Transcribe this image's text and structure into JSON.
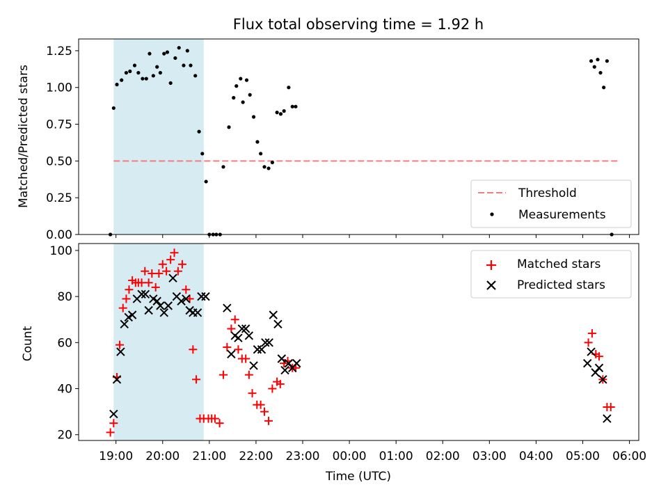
{
  "chart_data": [
    {
      "type": "scatter",
      "title": "Flux total observing time = 1.92 h",
      "xlabel": "",
      "ylabel": "Matched/Predicted stars",
      "ylim": [
        0,
        1.33
      ],
      "xlim": [
        18.2,
        30.2
      ],
      "yticks": [
        0,
        0.25,
        0.5,
        0.75,
        1.0,
        1.25
      ],
      "yticklabels": [
        "0.00",
        "0.25",
        "0.50",
        "0.75",
        "1.00",
        "1.25"
      ],
      "shaded_span": [
        18.95,
        20.88
      ],
      "shade_color": "#add8e6",
      "legend_position": "lower right",
      "threshold": {
        "name": "Threshold",
        "y": 0.5,
        "x_range": [
          18.95,
          29.8
        ],
        "color": "#f47c7c",
        "style": "dashed"
      },
      "series": [
        {
          "name": "Measurements",
          "color": "#000000",
          "marker": "dot",
          "x": [
            18.88,
            18.95,
            19.02,
            19.12,
            19.22,
            19.3,
            19.4,
            19.48,
            19.57,
            19.65,
            19.72,
            19.8,
            19.88,
            19.95,
            20.03,
            20.1,
            20.17,
            20.27,
            20.35,
            20.45,
            20.53,
            20.6,
            20.7,
            20.78,
            20.85,
            20.93,
            21.0,
            21.08,
            21.15,
            21.23,
            21.3,
            21.42,
            21.52,
            21.58,
            21.67,
            21.72,
            21.8,
            21.87,
            21.95,
            22.03,
            22.1,
            22.18,
            22.27,
            22.35,
            22.45,
            22.53,
            22.6,
            22.7,
            22.78,
            22.85,
            29.18,
            29.25,
            29.32,
            29.38,
            29.45,
            29.52,
            29.62
          ],
          "y": [
            0.0,
            0.86,
            1.02,
            1.05,
            1.1,
            1.11,
            1.15,
            1.1,
            1.06,
            1.06,
            1.23,
            1.08,
            1.14,
            1.1,
            1.23,
            1.24,
            1.03,
            1.2,
            1.27,
            1.15,
            1.25,
            1.15,
            1.08,
            0.7,
            0.55,
            0.36,
            0.0,
            0.0,
            0.0,
            0.0,
            0.46,
            0.73,
            0.93,
            1.01,
            1.06,
            0.9,
            1.05,
            0.95,
            0.8,
            0.63,
            0.55,
            0.46,
            0.45,
            0.49,
            0.83,
            0.82,
            0.84,
            1.0,
            0.87,
            0.87,
            1.18,
            1.14,
            1.19,
            1.1,
            1.0,
            1.18,
            0.0
          ]
        }
      ]
    },
    {
      "type": "scatter",
      "title": "",
      "xlabel": "Time (UTC)",
      "ylabel": "Count",
      "ylim": [
        17.5,
        103
      ],
      "xlim": [
        18.2,
        30.2
      ],
      "yticks": [
        20,
        40,
        60,
        80,
        100
      ],
      "yticklabels": [
        "20",
        "40",
        "60",
        "80",
        "100"
      ],
      "xticks": [
        19,
        20,
        21,
        22,
        23,
        24,
        25,
        26,
        27,
        28,
        29,
        30
      ],
      "xticklabels": [
        "19:00",
        "20:00",
        "21:00",
        "22:00",
        "23:00",
        "00:00",
        "01:00",
        "02:00",
        "03:00",
        "04:00",
        "05:00",
        "06:00"
      ],
      "shaded_span": [
        18.95,
        20.88
      ],
      "shade_color": "#add8e6",
      "legend_position": "upper right",
      "series": [
        {
          "name": "Matched stars",
          "color": "#ff0000",
          "marker": "plus",
          "x": [
            18.88,
            18.95,
            19.02,
            19.08,
            19.15,
            19.22,
            19.28,
            19.35,
            19.42,
            19.48,
            19.55,
            19.62,
            19.7,
            19.77,
            19.85,
            19.92,
            20.0,
            20.08,
            20.17,
            20.25,
            20.33,
            20.42,
            20.5,
            20.58,
            20.65,
            20.72,
            20.8,
            20.88,
            20.98,
            21.05,
            21.12,
            21.22,
            21.3,
            21.38,
            21.47,
            21.55,
            21.62,
            21.7,
            21.78,
            21.85,
            21.92,
            22.02,
            22.1,
            22.18,
            22.27,
            22.35,
            22.45,
            22.52,
            22.6,
            22.68,
            22.78,
            22.85,
            29.12,
            29.2,
            29.28,
            29.35,
            29.43,
            29.52,
            29.6
          ],
          "y": [
            21,
            25,
            45,
            59,
            75,
            79,
            83,
            87,
            86,
            86,
            86,
            91,
            86,
            90,
            84,
            90,
            94,
            91,
            96,
            99,
            91,
            94,
            83,
            79,
            57,
            44,
            27,
            27,
            27,
            27,
            27,
            25,
            46,
            58,
            66,
            70,
            57,
            53,
            53,
            46,
            38,
            33,
            33,
            30,
            26,
            40,
            43,
            42,
            51,
            52,
            49,
            49,
            60,
            64,
            55,
            54,
            44,
            32,
            32
          ]
        },
        {
          "name": "Predicted stars",
          "color": "#000000",
          "marker": "x",
          "x": [
            18.95,
            19.02,
            19.1,
            19.18,
            19.27,
            19.35,
            19.45,
            19.55,
            19.63,
            19.7,
            19.8,
            19.88,
            19.95,
            20.03,
            20.12,
            20.22,
            20.3,
            20.4,
            20.5,
            20.58,
            20.65,
            20.75,
            20.83,
            20.92,
            21.38,
            21.47,
            21.55,
            21.62,
            21.7,
            21.78,
            21.85,
            21.95,
            22.03,
            22.12,
            22.2,
            22.28,
            22.37,
            22.47,
            22.55,
            22.62,
            22.7,
            22.78,
            22.87,
            29.1,
            29.18,
            29.27,
            29.35,
            29.43,
            29.52
          ],
          "y": [
            29,
            44,
            56,
            68,
            71,
            72,
            79,
            81,
            81,
            74,
            79,
            78,
            76,
            73,
            76,
            88,
            80,
            78,
            79,
            74,
            73,
            73,
            80,
            80,
            75,
            55,
            63,
            62,
            66,
            66,
            63,
            50,
            57,
            57,
            60,
            60,
            72,
            68,
            53,
            48,
            51,
            49,
            51,
            51,
            56,
            47,
            49,
            44,
            27
          ]
        }
      ]
    }
  ]
}
